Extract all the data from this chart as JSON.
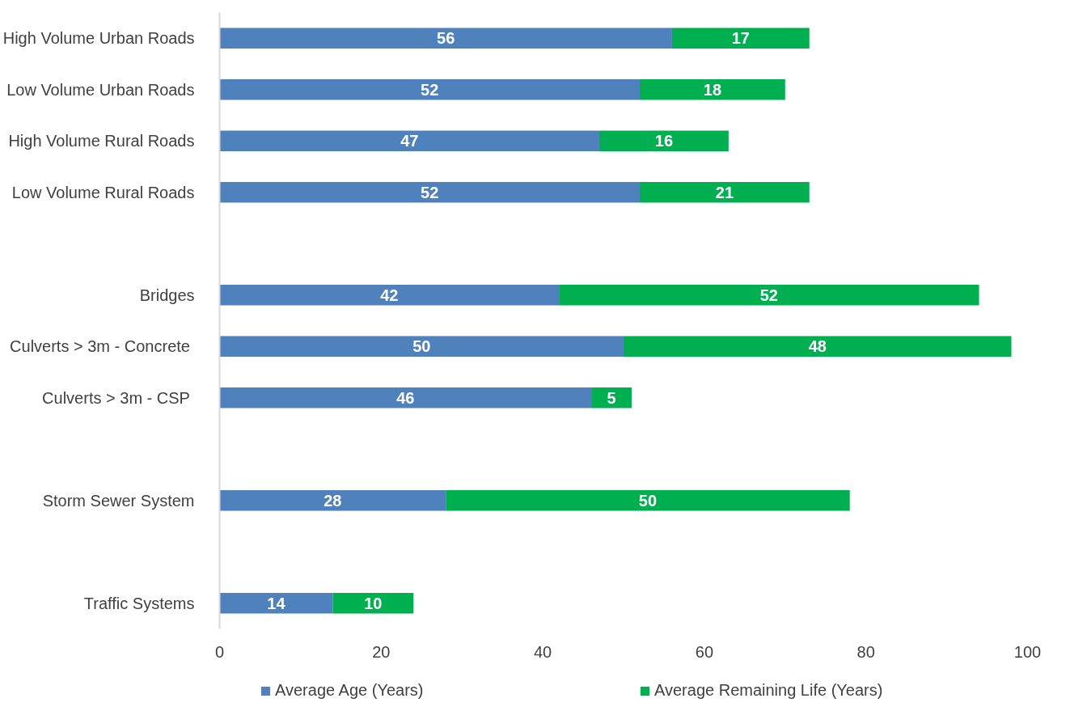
{
  "chart_data": {
    "type": "bar",
    "orientation": "horizontal",
    "stacked": true,
    "categories": [
      "High Volume Urban Roads",
      "Low Volume Urban Roads",
      "High Volume Rural Roads",
      "Low Volume Rural Roads",
      null,
      "Bridges",
      "Culverts  > 3m - Concrete",
      "Culverts  > 3m - CSP",
      null,
      "Storm Sewer System",
      null,
      "Traffic Systems"
    ],
    "series": [
      {
        "name": "Average Age (Years)",
        "color": "#4f81bd",
        "values": [
          56,
          52,
          47,
          52,
          null,
          42,
          50,
          46,
          null,
          28,
          null,
          14
        ]
      },
      {
        "name": "Average Remaining Life (Years)",
        "color": "#00b050",
        "values": [
          17,
          18,
          16,
          21,
          null,
          52,
          48,
          5,
          null,
          50,
          null,
          10
        ]
      }
    ],
    "xlim": [
      0,
      100
    ],
    "xticks": [
      0,
      20,
      40,
      60,
      80,
      100
    ],
    "grid": false,
    "legend": "bottom",
    "data_labels": true
  }
}
